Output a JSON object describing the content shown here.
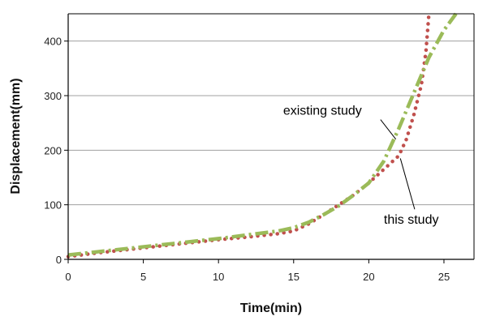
{
  "chart_data": {
    "type": "line",
    "xlabel": "Time(min)",
    "ylabel": "Displacement(mm)",
    "xlim": [
      0,
      27
    ],
    "ylim": [
      0,
      450
    ],
    "xticks": [
      0,
      5,
      10,
      15,
      20,
      25
    ],
    "yticks": [
      0,
      100,
      200,
      300,
      400
    ],
    "grid": "horizontal",
    "legend": "none",
    "colors": {
      "this_study": "#c0504d",
      "existing_study": "#9bbb59",
      "axis": "#000000",
      "grid": "#a0a0a0"
    },
    "series": [
      {
        "key": "this_study",
        "style": "dotted",
        "x": [
          0,
          2,
          4,
          6,
          8,
          10,
          12,
          14,
          15,
          16,
          17,
          18,
          19,
          20,
          21,
          22,
          22.5,
          23,
          23.5,
          23.8,
          24
        ],
        "y": [
          5,
          12,
          18,
          24,
          30,
          36,
          41,
          47,
          52,
          65,
          82,
          100,
          118,
          140,
          165,
          190,
          220,
          265,
          320,
          380,
          450
        ]
      },
      {
        "key": "existing_study",
        "style": "dash-dot",
        "x": [
          0,
          2,
          4,
          6,
          8,
          10,
          12,
          14,
          15,
          16,
          17,
          18,
          19,
          20,
          21,
          22,
          23,
          24,
          25,
          25.8
        ],
        "y": [
          8,
          14,
          20,
          26,
          32,
          38,
          45,
          52,
          58,
          68,
          82,
          98,
          118,
          140,
          180,
          240,
          305,
          370,
          420,
          450
        ]
      }
    ],
    "annotations": [
      {
        "text": "existing study",
        "target_series": "existing_study",
        "text_x": 14.3,
        "text_y": 265,
        "arrow_to": [
          21.8,
          220
        ]
      },
      {
        "text": "this study",
        "target_series": "this_study",
        "text_x": 21,
        "text_y": 65,
        "arrow_to": [
          22.1,
          185
        ]
      }
    ]
  }
}
